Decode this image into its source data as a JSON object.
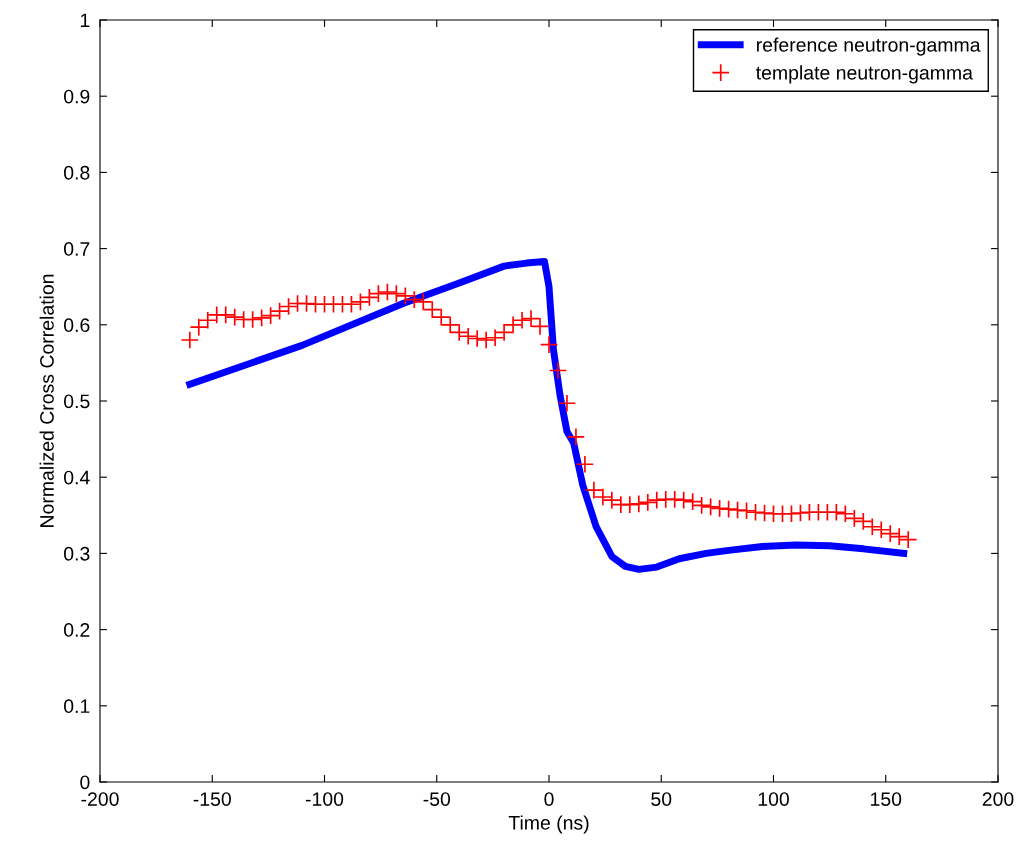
{
  "chart_data": {
    "type": "line",
    "xlabel": "Time (ns)",
    "ylabel": "Normalized Cross Correlation",
    "xlim": [
      -200,
      200
    ],
    "xticks": [
      -200,
      -150,
      -100,
      -50,
      0,
      50,
      100,
      150,
      200
    ],
    "ylim": [
      0,
      1
    ],
    "yticks": [
      0,
      0.1,
      0.2,
      0.3,
      0.4,
      0.5,
      0.6,
      0.7,
      0.8,
      0.9,
      1
    ],
    "grid": false,
    "legend": "top right",
    "series": [
      {
        "name": "reference neutron-gamma",
        "color": "#0000ff",
        "marker": "none",
        "line_style": "solid",
        "x": [
          -160,
          -110,
          -65,
          -40,
          -20,
          -10,
          -2,
          0,
          2,
          5,
          8,
          11,
          15,
          21,
          28,
          34,
          40,
          48,
          58,
          70,
          80,
          95,
          110,
          125,
          140,
          158
        ],
        "values": [
          0.522,
          0.573,
          0.628,
          0.655,
          0.677,
          0.681,
          0.683,
          0.65,
          0.567,
          0.506,
          0.46,
          0.445,
          0.39,
          0.335,
          0.296,
          0.283,
          0.279,
          0.282,
          0.293,
          0.3,
          0.304,
          0.309,
          0.311,
          0.31,
          0.306,
          0.3
        ]
      },
      {
        "name": "template neutron-gamma",
        "type": "scatter",
        "color": "#ff0000",
        "marker": "cross",
        "x": [
          -160,
          -156,
          -152,
          -148,
          -144,
          -140,
          -136,
          -132,
          -128,
          -124,
          -120,
          -116,
          -112,
          -108,
          -104,
          -100,
          -96,
          -92,
          -88,
          -84,
          -80,
          -76,
          -72,
          -68,
          -64,
          -60,
          -56,
          -52,
          -48,
          -44,
          -40,
          -36,
          -32,
          -28,
          -24,
          -20,
          -16,
          -12,
          -8,
          -4,
          0,
          4,
          8,
          12,
          16,
          20,
          24,
          28,
          32,
          36,
          40,
          44,
          48,
          52,
          56,
          60,
          64,
          68,
          72,
          76,
          80,
          84,
          88,
          92,
          96,
          100,
          104,
          108,
          112,
          116,
          120,
          124,
          128,
          132,
          136,
          140,
          144,
          148,
          152,
          156,
          160
        ],
        "values": [
          0.58,
          0.597,
          0.606,
          0.613,
          0.613,
          0.61,
          0.607,
          0.607,
          0.609,
          0.612,
          0.618,
          0.624,
          0.628,
          0.628,
          0.627,
          0.627,
          0.627,
          0.627,
          0.627,
          0.63,
          0.636,
          0.641,
          0.643,
          0.641,
          0.638,
          0.633,
          0.63,
          0.62,
          0.61,
          0.6,
          0.59,
          0.585,
          0.582,
          0.58,
          0.583,
          0.59,
          0.6,
          0.606,
          0.608,
          0.598,
          0.574,
          0.54,
          0.497,
          0.453,
          0.417,
          0.383,
          0.374,
          0.37,
          0.364,
          0.364,
          0.365,
          0.367,
          0.37,
          0.371,
          0.371,
          0.37,
          0.368,
          0.363,
          0.361,
          0.359,
          0.358,
          0.357,
          0.356,
          0.354,
          0.353,
          0.352,
          0.352,
          0.352,
          0.353,
          0.354,
          0.354,
          0.354,
          0.354,
          0.352,
          0.346,
          0.342,
          0.335,
          0.331,
          0.326,
          0.322,
          0.318
        ]
      }
    ]
  }
}
